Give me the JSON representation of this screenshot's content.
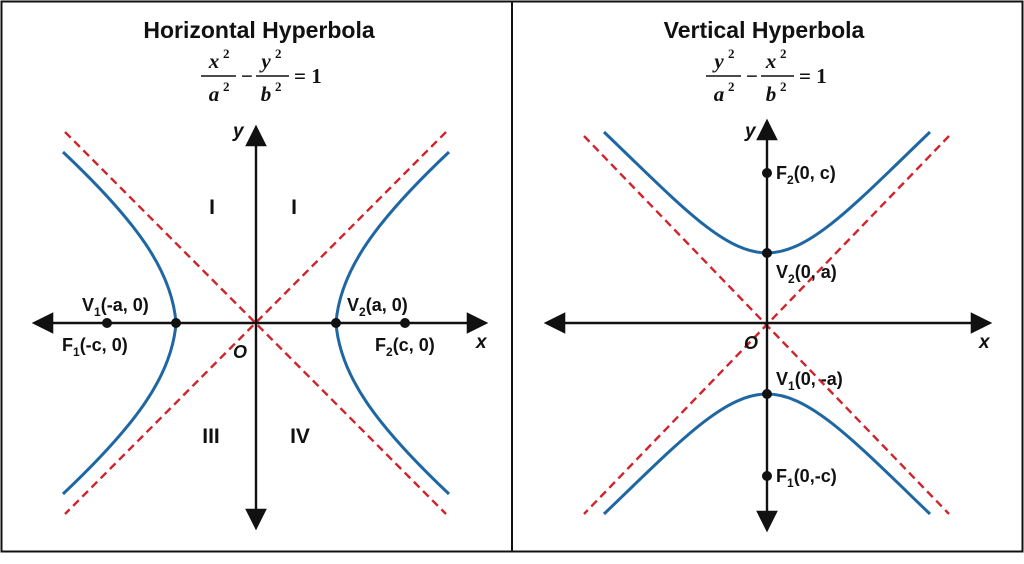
{
  "colors": {
    "curve": "#1f67a3",
    "asymptote": "#d0232a",
    "axis": "#111111",
    "border": "#111111"
  },
  "horizontal": {
    "title": "Horizontal Hyperbola",
    "equation": {
      "num1": "x",
      "den1": "a",
      "minus": "−",
      "num2": "y",
      "den2": "b",
      "equals": "= 1",
      "power": "2"
    },
    "axis_x": "x",
    "axis_y": "y",
    "origin": "O",
    "quadrant_labels": [
      "I",
      "I",
      "III",
      "IV"
    ],
    "points": {
      "v1": {
        "main": "V",
        "sub": "1",
        "coord": "(-a, 0)"
      },
      "v2": {
        "main": "V",
        "sub": "2",
        "coord": "(a, 0)"
      },
      "f1": {
        "main": "F",
        "sub": "1",
        "coord": "(-c, 0)"
      },
      "f2": {
        "main": "F",
        "sub": "2",
        "coord": "(c, 0)"
      }
    }
  },
  "vertical": {
    "title": "Vertical Hyperbola",
    "equation": {
      "num1": "y",
      "den1": "a",
      "minus": "−",
      "num2": "x",
      "den2": "b",
      "equals": "= 1",
      "power": "2"
    },
    "axis_x": "x",
    "axis_y": "y",
    "origin": "O",
    "points": {
      "f2": {
        "main": "F",
        "sub": "2",
        "coord": "(0, c)"
      },
      "v2": {
        "main": "V",
        "sub": "2",
        "coord": "(0, a)"
      },
      "v1": {
        "main": "V",
        "sub": "1",
        "coord": "(0, -a)"
      },
      "f1": {
        "main": "F",
        "sub": "1",
        "coord": "(0,-c)"
      }
    }
  }
}
